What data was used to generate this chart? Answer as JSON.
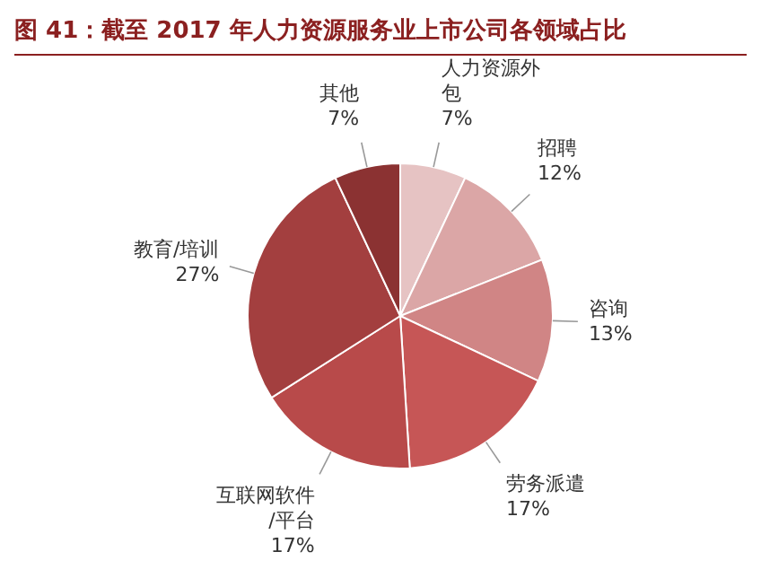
{
  "chart_data": {
    "type": "pie",
    "title": "图 41：截至 2017 年人力资源服务业上市公司各领域占比",
    "categories": [
      "人力资源外包",
      "招聘",
      "咨询",
      "劳务派遣",
      "互联网软件/平台",
      "教育/培训",
      "其他"
    ],
    "values": [
      7,
      12,
      13,
      17,
      17,
      27,
      7
    ],
    "value_labels": [
      "7%",
      "12%",
      "13%",
      "17%",
      "17%",
      "27%",
      "7%"
    ],
    "colors": [
      "#e6c3c3",
      "#dba6a6",
      "#d08585",
      "#c65656",
      "#b84a4a",
      "#a33f3f",
      "#8b3232"
    ],
    "legend": false
  }
}
